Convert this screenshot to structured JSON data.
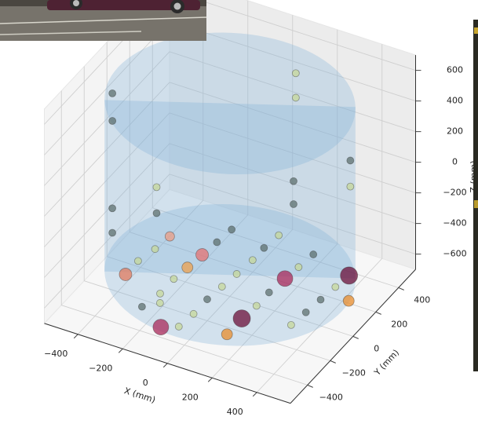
{
  "chart_data": {
    "type": "scatter3d",
    "xlabel": "X (mm)",
    "ylabel": "Y (mm)",
    "zlabel": "Z (mm)",
    "xlim": [
      -550,
      550
    ],
    "ylim": [
      -550,
      550
    ],
    "zlim": [
      -700,
      700
    ],
    "xticks": [
      {
        "value": -400,
        "label": "−400"
      },
      {
        "value": -200,
        "label": "−200"
      },
      0,
      200,
      400
    ],
    "yticks": [
      {
        "value": -400,
        "label": "−400"
      },
      {
        "value": -200,
        "label": "−200"
      },
      0,
      200,
      400
    ],
    "zticks": [
      {
        "value": -600,
        "label": "−600"
      },
      {
        "value": -400,
        "label": "−400"
      },
      {
        "value": -200,
        "label": "−200"
      },
      0,
      200,
      400,
      600
    ],
    "grid": true,
    "cylinder": {
      "radius": 500,
      "zlim": [
        -560,
        560
      ],
      "color": "#7fb0d8"
    },
    "points": {
      "x": [
        -330,
        -140,
        40,
        -340,
        -150,
        -160,
        -360,
        -170,
        30,
        30,
        220,
        -360,
        -180,
        20,
        210,
        200,
        410,
        10,
        -180,
        0,
        190,
        400,
        -200,
        -150,
        190,
        390,
        490,
        0,
        180,
        380,
        -70,
        -10,
        180,
        370,
        -480,
        -480,
        50,
        50,
        360,
        360,
        40,
        40,
        -470,
        -470,
        -440,
        -440
      ],
      "y": [
        120,
        290,
        350,
        10,
        180,
        70,
        -100,
        -40,
        140,
        240,
        300,
        -210,
        -140,
        20,
        190,
        90,
        240,
        -90,
        -260,
        -200,
        -30,
        140,
        -380,
        -320,
        -140,
        30,
        80,
        -320,
        -250,
        -80,
        -470,
        -430,
        -380,
        -190,
        -90,
        -90,
        480,
        480,
        350,
        350,
        480,
        480,
        -110,
        -110,
        220,
        220
      ],
      "z": [
        -560,
        -560,
        -560,
        -560,
        -560,
        -560,
        -560,
        -560,
        -560,
        -560,
        -560,
        -560,
        -560,
        -560,
        -560,
        -560,
        -560,
        -560,
        -560,
        -560,
        -560,
        -560,
        -560,
        -560,
        -560,
        -560,
        -560,
        -560,
        -560,
        -560,
        -560,
        -560,
        -560,
        -560,
        470,
        290,
        400,
        240,
        80,
        -90,
        -310,
        -460,
        -260,
        -420,
        -370,
        -540
      ],
      "colors": [
        "#eb9c84",
        "#5d706f",
        "#c5d79a",
        "#c5d79a",
        "#5d706f",
        "#e57272",
        "#c5d79a",
        "#eea04e",
        "#c5d79a",
        "#5d706f",
        "#5d706f",
        "#e07a5e",
        "#c5d79a",
        "#c5d79a",
        "#c5d79a",
        "#a8285a",
        "#6b0f38",
        "#c5d79a",
        "#c5d79a",
        "#5d706f",
        "#5d706f",
        "#c5d79a",
        "#5d706f",
        "#c5d79a",
        "#c5d79a",
        "#5d706f",
        "#e88c2c",
        "#c5d79a",
        "#6b0f38",
        "#5d706f",
        "#a8285a",
        "#c5d79a",
        "#e88c2c",
        "#c5d79a",
        "#5d706f",
        "#5d706f",
        "#c5d79a",
        "#c5d79a",
        "#5d706f",
        "#c5d79a",
        "#5d706f",
        "#5d706f",
        "#5d706f",
        "#5d706f",
        "#c5d79a",
        "#5d706f"
      ],
      "sizes": [
        6,
        4.5,
        4.5,
        4.5,
        4.5,
        8,
        4.5,
        7,
        4.5,
        4.5,
        4.5,
        8,
        4.5,
        4.5,
        4.5,
        10,
        11,
        4.5,
        4.5,
        4.5,
        4.5,
        4.5,
        4.5,
        4.5,
        4.5,
        4.5,
        7,
        4.5,
        11,
        4.5,
        10,
        4.5,
        7,
        4.5,
        4.5,
        4.5,
        4.5,
        4.5,
        4.5,
        4.5,
        4.5,
        4.5,
        4.5,
        4.5,
        4.5,
        4.5
      ]
    }
  }
}
